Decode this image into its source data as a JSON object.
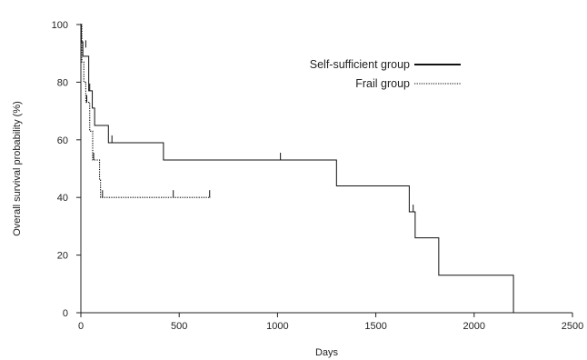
{
  "chart_data": {
    "type": "line",
    "xlabel": "Days",
    "ylabel": "Overall survival probability  (%)",
    "xlim": [
      0,
      2500
    ],
    "ylim": [
      0,
      100
    ],
    "xticks": [
      0,
      500,
      1000,
      1500,
      2000,
      2500
    ],
    "yticks": [
      0,
      20,
      40,
      60,
      80,
      100
    ],
    "grid": false,
    "legend_position": "top-right",
    "series": [
      {
        "name": "Self-sufficient group",
        "style": "solid",
        "steps": [
          [
            0,
            100
          ],
          [
            2,
            94
          ],
          [
            10,
            89
          ],
          [
            40,
            77
          ],
          [
            58,
            71
          ],
          [
            70,
            65
          ],
          [
            140,
            59
          ],
          [
            420,
            53
          ],
          [
            1300,
            44
          ],
          [
            1670,
            35
          ],
          [
            1700,
            26
          ],
          [
            1820,
            13
          ],
          [
            2200,
            0
          ]
        ],
        "censor": [
          [
            25,
            92
          ],
          [
            45,
            77
          ],
          [
            158,
            59
          ],
          [
            1015,
            53
          ],
          [
            1690,
            35
          ]
        ]
      },
      {
        "name": "Frail group",
        "style": "dotted",
        "steps": [
          [
            0,
            100
          ],
          [
            5,
            87
          ],
          [
            15,
            80
          ],
          [
            25,
            73
          ],
          [
            35,
            73
          ],
          [
            45,
            63
          ],
          [
            60,
            53
          ],
          [
            85,
            53
          ],
          [
            95,
            46
          ],
          [
            100,
            40
          ],
          [
            660,
            40
          ]
        ],
        "end": 660,
        "censor": [
          [
            30,
            73
          ],
          [
            65,
            53
          ],
          [
            110,
            40
          ],
          [
            470,
            40
          ],
          [
            655,
            40
          ]
        ]
      }
    ]
  }
}
